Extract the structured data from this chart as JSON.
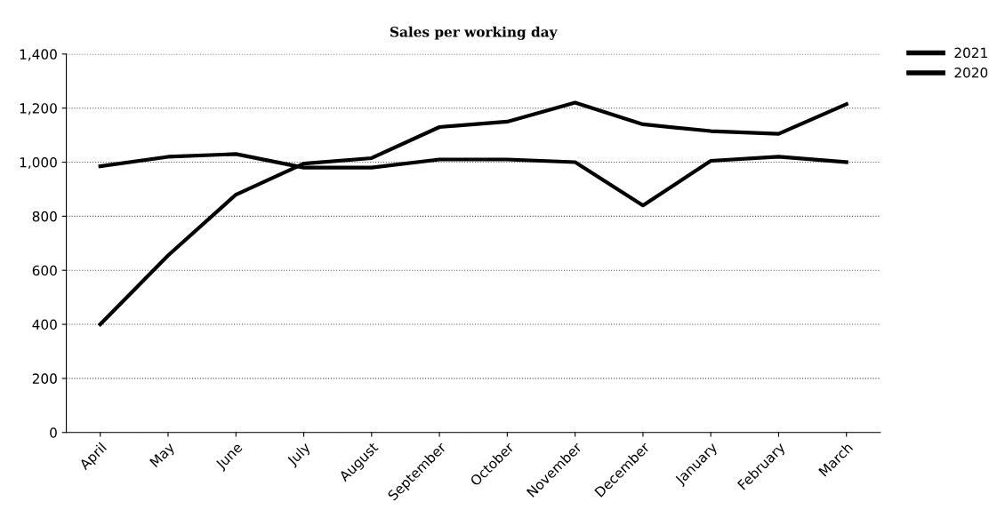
{
  "chart_data": {
    "type": "line",
    "title": "Sales per working day",
    "categories": [
      "April",
      "May",
      "June",
      "July",
      "August",
      "September",
      "October",
      "November",
      "December",
      "January",
      "February",
      "March"
    ],
    "series": [
      {
        "name": "2021",
        "color": "#000000",
        "values": [
          400,
          655,
          880,
          995,
          1015,
          1130,
          1150,
          1220,
          1140,
          1115,
          1105,
          1215
        ]
      },
      {
        "name": "2020",
        "color": "#000000",
        "values": [
          985,
          1020,
          1030,
          980,
          980,
          1010,
          1010,
          1000,
          840,
          1005,
          1020,
          1000
        ]
      }
    ],
    "ylim": [
      0,
      1400
    ],
    "yticks": [
      {
        "value": 0,
        "label": "0"
      },
      {
        "value": 200,
        "label": "200"
      },
      {
        "value": 400,
        "label": "400"
      },
      {
        "value": 600,
        "label": "600"
      },
      {
        "value": 800,
        "label": "800"
      },
      {
        "value": 1000,
        "label": "1,000"
      },
      {
        "value": 1200,
        "label": "1,200"
      },
      {
        "value": 1400,
        "label": "1,400"
      }
    ],
    "grid": "y",
    "legend": "top right",
    "marker": "none",
    "line_style": "solid"
  }
}
